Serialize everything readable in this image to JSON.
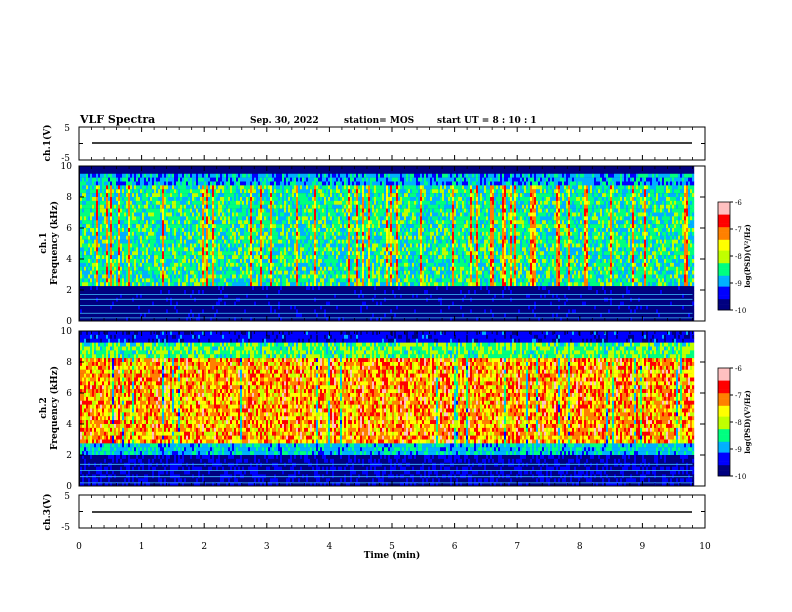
{
  "header": {
    "title": "VLF Spectra",
    "date": "Sep. 30, 2022",
    "station": "station= MOS",
    "start": "start  UT =   8  : 10 : 1"
  },
  "chart_data": [
    {
      "type": "line",
      "panel": "ch1-waveform",
      "ylabel": "ch.1(V)",
      "yticks": [
        "5",
        "-5"
      ],
      "ylim": [
        -5,
        5
      ],
      "xlim": [
        0,
        10
      ],
      "series": [
        {
          "x": [
            0,
            9.8
          ],
          "y": [
            0,
            0
          ]
        }
      ]
    },
    {
      "type": "heatmap",
      "panel": "ch1-spectrogram",
      "ylabel": "ch.1\nFrequency (kHz)",
      "ylabel_line1": "ch.1",
      "ylabel_line2": "Frequency (kHz)",
      "yticks": [
        "0",
        "2",
        "4",
        "6",
        "8",
        "10"
      ],
      "ylim": [
        0,
        10
      ],
      "xlim": [
        0,
        10
      ],
      "data_end_min": 9.8
    },
    {
      "type": "heatmap",
      "panel": "ch2-spectrogram",
      "ylabel": "ch.2\nFrequency (kHz)",
      "ylabel_line1": "ch.2",
      "ylabel_line2": "Frequency (kHz)",
      "yticks": [
        "0",
        "2",
        "4",
        "6",
        "8",
        "10"
      ],
      "ylim": [
        0,
        10
      ],
      "xlim": [
        0,
        10
      ],
      "data_end_min": 9.8
    },
    {
      "type": "line",
      "panel": "ch3-waveform",
      "ylabel": "ch.3(V)",
      "yticks": [
        "5",
        "-5"
      ],
      "ylim": [
        -5,
        5
      ],
      "xlim": [
        0,
        10
      ],
      "xlabel": "Time  (min)",
      "xticks": [
        "0",
        "1",
        "2",
        "3",
        "4",
        "5",
        "6",
        "7",
        "8",
        "9",
        "10"
      ],
      "series": [
        {
          "x": [
            0,
            9.8
          ],
          "y": [
            0,
            0
          ]
        }
      ]
    }
  ],
  "colorbar": {
    "label": "log(PSD)(V²/Hz)",
    "ticks": [
      "-6",
      "-7",
      "-8",
      "-9",
      "-10"
    ],
    "range": [
      -10,
      -6
    ],
    "colors": [
      "#000080",
      "#0000ff",
      "#00b0ff",
      "#00ff80",
      "#c0ff00",
      "#ffff00",
      "#ff8000",
      "#ff0000",
      "#ffc0c0",
      "#ffffff"
    ]
  }
}
